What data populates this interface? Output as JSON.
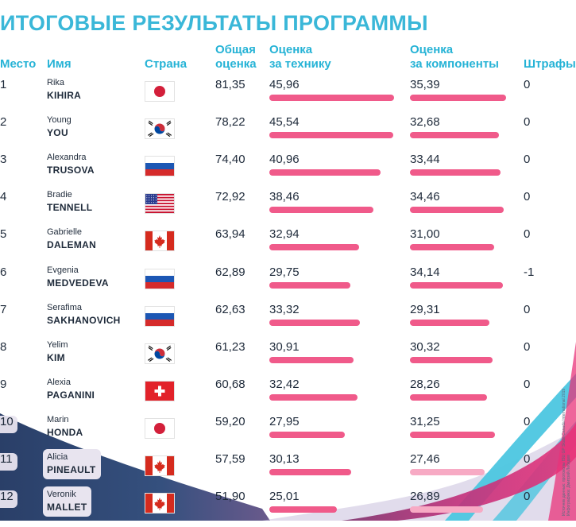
{
  "title": "ИТОГОВЫЕ РЕЗУЛЬТАТЫ ПРОГРАММЫ",
  "headers": {
    "place": "Место",
    "name": "Имя",
    "country": "Страна",
    "total_1": "Общая",
    "total_2": "оценка",
    "tech_1": "Оценка",
    "tech_2": "за технику",
    "comp_1": "Оценка",
    "comp_2": "за компоненты",
    "penalty": "Штрафы"
  },
  "rows": [
    {
      "place": "1",
      "first": "Rika",
      "last": "KIHIRA",
      "country": "japan-flag-icon",
      "total": "81,35",
      "tech": "45,96",
      "comp": "35,39",
      "penalty": "0"
    },
    {
      "place": "2",
      "first": "Young",
      "last": "YOU",
      "country": "south-korea-flag-icon",
      "total": "78,22",
      "tech": "45,54",
      "comp": "32,68",
      "penalty": "0"
    },
    {
      "place": "3",
      "first": "Alexandra",
      "last": "TRUSOVA",
      "country": "russia-flag-icon",
      "total": "74,40",
      "tech": "40,96",
      "comp": "33,44",
      "penalty": "0"
    },
    {
      "place": "4",
      "first": "Bradie",
      "last": "TENNELL",
      "country": "usa-flag-icon",
      "total": "72,92",
      "tech": "38,46",
      "comp": "34,46",
      "penalty": "0"
    },
    {
      "place": "5",
      "first": "Gabrielle",
      "last": "DALEMAN",
      "country": "canada-flag-icon",
      "total": "63,94",
      "tech": "32,94",
      "comp": "31,00",
      "penalty": "0"
    },
    {
      "place": "6",
      "first": "Evgenia",
      "last": "MEDVEDEVA",
      "country": "russia-flag-icon",
      "total": "62,89",
      "tech": "29,75",
      "comp": "34,14",
      "penalty": "-1"
    },
    {
      "place": "7",
      "first": "Serafima",
      "last": "SAKHANOVICH",
      "country": "russia-flag-icon",
      "total": "62,63",
      "tech": "33,32",
      "comp": "29,31",
      "penalty": "0"
    },
    {
      "place": "8",
      "first": "Yelim",
      "last": "KIM",
      "country": "south-korea-flag-icon",
      "total": "61,23",
      "tech": "30,91",
      "comp": "30,32",
      "penalty": "0"
    },
    {
      "place": "9",
      "first": "Alexia",
      "last": "PAGANINI",
      "country": "switzerland-flag-icon",
      "total": "60,68",
      "tech": "32,42",
      "comp": "28,26",
      "penalty": "0"
    },
    {
      "place": "10",
      "first": "Marin",
      "last": "HONDA",
      "country": "japan-flag-icon",
      "total": "59,20",
      "tech": "27,95",
      "comp": "31,25",
      "penalty": "0"
    },
    {
      "place": "11",
      "first": "Alicia",
      "last": "PINEAULT",
      "country": "canada-flag-icon",
      "total": "57,59",
      "tech": "30,13",
      "comp": "27,46",
      "penalty": "0"
    },
    {
      "place": "12",
      "first": "Veronik",
      "last": "MALLET",
      "country": "canada-flag-icon",
      "total": "51,90",
      "tech": "25,01",
      "comp": "26,89",
      "penalty": "0"
    }
  ],
  "credit_1": "Источник данных: протоколы ISU GP Skate Canada International 2019",
  "credit_2": "Инфографика: Дмитрий Лебедев",
  "colors": {
    "title": "#3ab7d8",
    "header": "#26b3d6",
    "bar": "#f05a8a",
    "text": "#1e2a3a",
    "bg_navy": "#2a3f68",
    "bg_cyan": "#4cc6e0",
    "bg_magenta": "#e8337a"
  },
  "chart_data": {
    "type": "bar",
    "categories": [
      "KIHIRA",
      "YOU",
      "TRUSOVA",
      "TENNELL",
      "DALEMAN",
      "MEDVEDEVA",
      "SAKHANOVICH",
      "KIM",
      "PAGANINI",
      "HONDA",
      "PINEAULT",
      "MALLET"
    ],
    "series": [
      {
        "name": "Оценка за технику",
        "values": [
          45.96,
          45.54,
          40.96,
          38.46,
          32.94,
          29.75,
          33.32,
          30.91,
          32.42,
          27.95,
          30.13,
          25.01
        ]
      },
      {
        "name": "Оценка за компоненты",
        "values": [
          35.39,
          32.68,
          33.44,
          34.46,
          31.0,
          34.14,
          29.31,
          30.32,
          28.26,
          31.25,
          27.46,
          26.89
        ]
      }
    ],
    "title": "ИТОГОВЫЕ РЕЗУЛЬТАТЫ ПРОГРАММЫ"
  }
}
